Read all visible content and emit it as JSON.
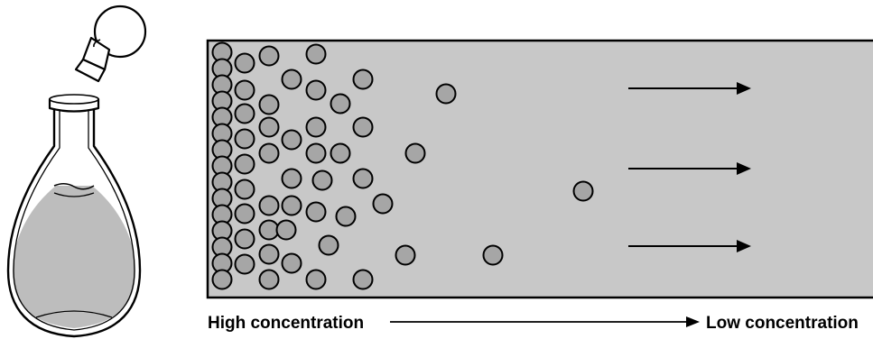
{
  "labels": {
    "high": "High concentration",
    "low": "Low concentration"
  },
  "colors": {
    "container_fill": "#c8c8c8",
    "particle_fill": "#a6a6a6",
    "liquid_fill": "#bdbdbd",
    "stroke": "#000000"
  },
  "icons": {
    "flask": "flask-icon",
    "stopper": "stopper-icon",
    "arrow": "right-arrow-icon"
  }
}
